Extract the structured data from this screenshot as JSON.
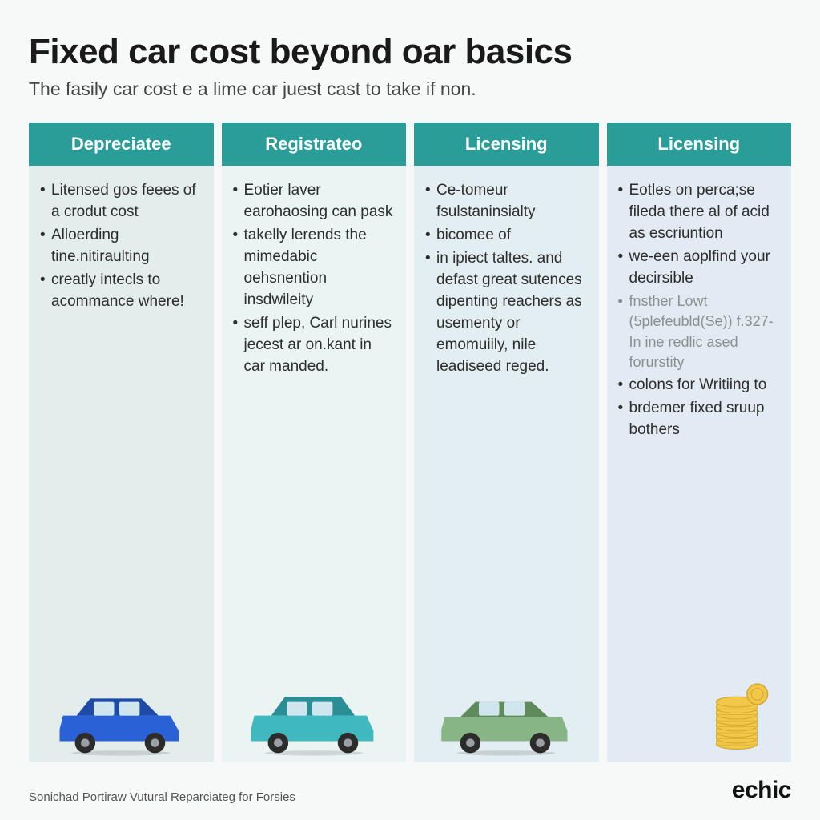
{
  "header": {
    "title": "Fixed car cost beyond oar basics",
    "subtitle": "The fasily car cost e a lime car juest cast to take if non."
  },
  "columns": [
    {
      "header": "Depreciatee",
      "header_bg": "#2b9d98",
      "body_bg": "#e3edec",
      "bullets": [
        "Litensed gos feees of a crodut cost",
        "Alloerding tine.nitiraulting",
        "creatly intecls to acommance where!"
      ],
      "icon": "car-blue",
      "icon_color": "#2a62d6",
      "icon_accent": "#1e4aa8"
    },
    {
      "header": "Registrateo",
      "header_bg": "#2b9d98",
      "body_bg": "#e9f4f3",
      "bullets": [
        "Eotier laver earohaosing can pask",
        "takelly lerends the mimedabic oehsnention insdwileity",
        "seff plep, Carl nurines jecest ar on.kant in car manded."
      ],
      "icon": "car-teal",
      "icon_color": "#3fb8c0",
      "icon_accent": "#2a8e96"
    },
    {
      "header": "Licensing",
      "header_bg": "#2b9d98",
      "body_bg": "#e3eef2",
      "bullets": [
        "Ce-tomeur fsulstaninsialty",
        "bicomee of",
        "in ipiect taltes. and defast great sutences dipenting reachers as usementy or emomuiily, nile leadiseed reged."
      ],
      "icon": "car-green",
      "icon_color": "#88b585",
      "icon_accent": "#5f8a5c"
    },
    {
      "header": "Licensing",
      "header_bg": "#2b9d98",
      "body_bg": "#e2ebf3",
      "bullets": [
        "Eotles on perca;se fileda there al of acid as escriuntion",
        "we-een aoplfind your decirsible",
        "fnsther Lowt (5plefeubld(Se)) f.327-In ine redlic ased forurstity",
        "colons for Writiing to",
        "brdemer fixed sruup bothers"
      ],
      "muted_index": 2,
      "icon": "coins",
      "icon_color": "#f2c84b",
      "icon_accent": "#d4a72a"
    }
  ],
  "footer": {
    "attribution": "Sonichad Portiraw Vutural Reparciateg for Forsies",
    "brand": "echic"
  },
  "style": {
    "title_fontsize": 44,
    "subtitle_fontsize": 23,
    "header_fontsize": 22,
    "bullet_fontsize": 19,
    "background": "#f7f8f8"
  }
}
